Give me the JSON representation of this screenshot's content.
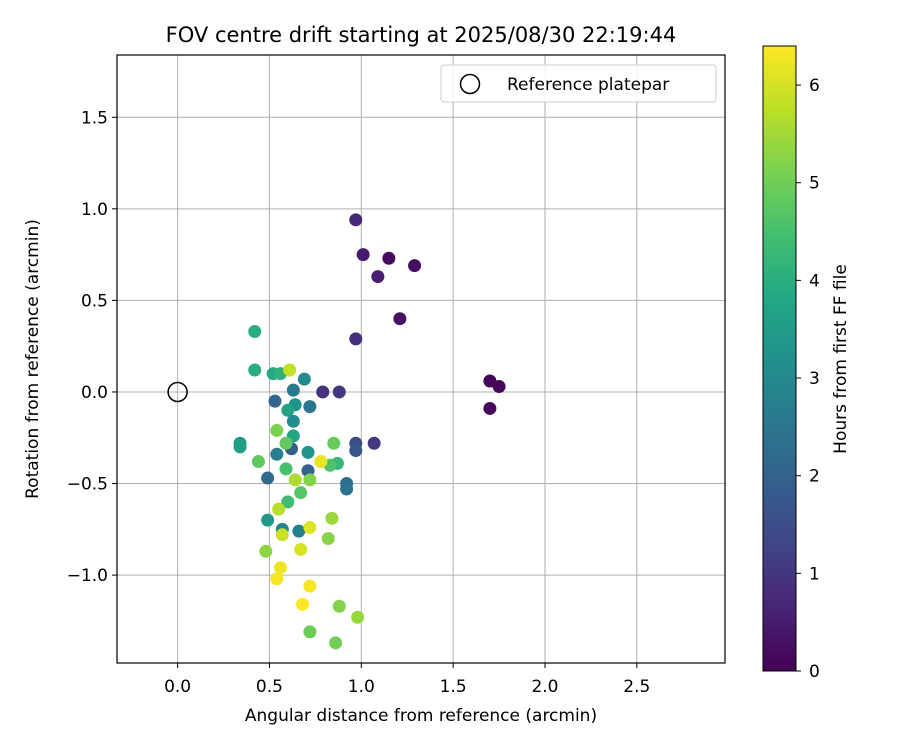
{
  "chart_data": {
    "type": "scatter",
    "title": "FOV centre drift starting at 2025/08/30 22:19:44",
    "xlabel": "Angular distance from reference (arcmin)",
    "ylabel": "Rotation from reference (arcmin)",
    "xlim": [
      -0.33,
      2.98
    ],
    "ylim": [
      -1.48,
      1.84
    ],
    "xticks": [
      0.0,
      0.5,
      1.0,
      1.5,
      2.0,
      2.5
    ],
    "xtick_labels": [
      "0.0",
      "0.5",
      "1.0",
      "1.5",
      "2.0",
      "2.5"
    ],
    "yticks": [
      -1.0,
      -0.5,
      0.0,
      0.5,
      1.0,
      1.5
    ],
    "ytick_labels": [
      "−1.0",
      "−0.5",
      "0.0",
      "0.5",
      "1.0",
      "1.5"
    ],
    "grid": true,
    "legend": {
      "position": "top-right",
      "label": "Reference platepar"
    },
    "reference_point": {
      "x": 0.0,
      "y": 0.0
    },
    "colorbar": {
      "label": "Hours from first FF file",
      "range": [
        0,
        6.4
      ],
      "ticks": [
        0,
        1,
        2,
        3,
        4,
        5,
        6
      ],
      "tick_labels": [
        "0",
        "1",
        "2",
        "3",
        "4",
        "5",
        "6"
      ],
      "colormap": "viridis"
    },
    "points": [
      {
        "x": 1.7,
        "y": 0.06,
        "c": 0.05
      },
      {
        "x": 1.75,
        "y": 0.03,
        "c": 0.1
      },
      {
        "x": 1.7,
        "y": -0.09,
        "c": 0.15
      },
      {
        "x": 1.15,
        "y": 0.73,
        "c": 0.2
      },
      {
        "x": 1.29,
        "y": 0.69,
        "c": 0.25
      },
      {
        "x": 1.21,
        "y": 0.4,
        "c": 0.3
      },
      {
        "x": 1.01,
        "y": 0.75,
        "c": 0.5
      },
      {
        "x": 1.09,
        "y": 0.63,
        "c": 0.55
      },
      {
        "x": 0.97,
        "y": 0.94,
        "c": 0.7
      },
      {
        "x": 0.97,
        "y": 0.29,
        "c": 0.85
      },
      {
        "x": 0.79,
        "y": 0.0,
        "c": 0.9
      },
      {
        "x": 0.88,
        "y": 0.0,
        "c": 1.0
      },
      {
        "x": 1.07,
        "y": -0.28,
        "c": 1.1
      },
      {
        "x": 0.97,
        "y": -0.28,
        "c": 1.5
      },
      {
        "x": 0.97,
        "y": -0.32,
        "c": 1.7
      },
      {
        "x": 0.62,
        "y": -0.31,
        "c": 1.9
      },
      {
        "x": 0.71,
        "y": -0.43,
        "c": 2.0
      },
      {
        "x": 0.53,
        "y": -0.05,
        "c": 2.1
      },
      {
        "x": 0.49,
        "y": -0.47,
        "c": 2.2
      },
      {
        "x": 0.92,
        "y": -0.5,
        "c": 2.3
      },
      {
        "x": 0.92,
        "y": -0.53,
        "c": 2.4
      },
      {
        "x": 0.72,
        "y": -0.08,
        "c": 2.5
      },
      {
        "x": 0.63,
        "y": 0.01,
        "c": 2.6
      },
      {
        "x": 0.54,
        "y": -0.34,
        "c": 2.7
      },
      {
        "x": 0.66,
        "y": -0.76,
        "c": 2.8
      },
      {
        "x": 0.57,
        "y": -0.75,
        "c": 2.9
      },
      {
        "x": 0.69,
        "y": 0.07,
        "c": 3.0
      },
      {
        "x": 0.63,
        "y": -0.16,
        "c": 3.1
      },
      {
        "x": 0.64,
        "y": -0.07,
        "c": 3.2
      },
      {
        "x": 0.71,
        "y": -0.33,
        "c": 3.3
      },
      {
        "x": 0.49,
        "y": -0.7,
        "c": 3.4
      },
      {
        "x": 0.34,
        "y": -0.28,
        "c": 3.5
      },
      {
        "x": 0.34,
        "y": -0.3,
        "c": 3.6
      },
      {
        "x": 0.6,
        "y": -0.1,
        "c": 3.7
      },
      {
        "x": 0.63,
        "y": -0.24,
        "c": 3.8
      },
      {
        "x": 0.52,
        "y": 0.1,
        "c": 3.9
      },
      {
        "x": 0.42,
        "y": 0.12,
        "c": 3.95
      },
      {
        "x": 0.42,
        "y": 0.33,
        "c": 4.0
      },
      {
        "x": 0.56,
        "y": 0.1,
        "c": 4.1
      },
      {
        "x": 0.87,
        "y": -0.39,
        "c": 4.2
      },
      {
        "x": 0.6,
        "y": -0.6,
        "c": 4.4
      },
      {
        "x": 0.59,
        "y": -0.42,
        "c": 4.5
      },
      {
        "x": 0.83,
        "y": -0.4,
        "c": 4.6
      },
      {
        "x": 0.67,
        "y": -0.55,
        "c": 4.7
      },
      {
        "x": 0.44,
        "y": -0.38,
        "c": 4.8
      },
      {
        "x": 0.59,
        "y": -0.28,
        "c": 4.85
      },
      {
        "x": 0.85,
        "y": -0.28,
        "c": 4.9
      },
      {
        "x": 0.72,
        "y": -1.31,
        "c": 4.95
      },
      {
        "x": 0.86,
        "y": -1.37,
        "c": 5.0
      },
      {
        "x": 0.54,
        "y": -0.21,
        "c": 5.1
      },
      {
        "x": 0.72,
        "y": -0.48,
        "c": 5.2
      },
      {
        "x": 0.88,
        "y": -1.17,
        "c": 5.2
      },
      {
        "x": 0.82,
        "y": -0.8,
        "c": 5.25
      },
      {
        "x": 0.48,
        "y": -0.87,
        "c": 5.3
      },
      {
        "x": 0.98,
        "y": -1.23,
        "c": 5.4
      },
      {
        "x": 0.84,
        "y": -0.69,
        "c": 5.45
      },
      {
        "x": 0.64,
        "y": -0.48,
        "c": 5.6
      },
      {
        "x": 0.55,
        "y": -0.64,
        "c": 5.7
      },
      {
        "x": 0.61,
        "y": 0.12,
        "c": 5.8
      },
      {
        "x": 0.57,
        "y": -0.78,
        "c": 5.9
      },
      {
        "x": 0.67,
        "y": -0.86,
        "c": 6.0
      },
      {
        "x": 0.72,
        "y": -0.74,
        "c": 6.1
      },
      {
        "x": 0.78,
        "y": -0.38,
        "c": 6.2
      },
      {
        "x": 0.56,
        "y": -0.96,
        "c": 6.25
      },
      {
        "x": 0.54,
        "y": -1.02,
        "c": 6.3
      },
      {
        "x": 0.72,
        "y": -1.06,
        "c": 6.35
      },
      {
        "x": 0.68,
        "y": -1.16,
        "c": 6.4
      }
    ]
  }
}
